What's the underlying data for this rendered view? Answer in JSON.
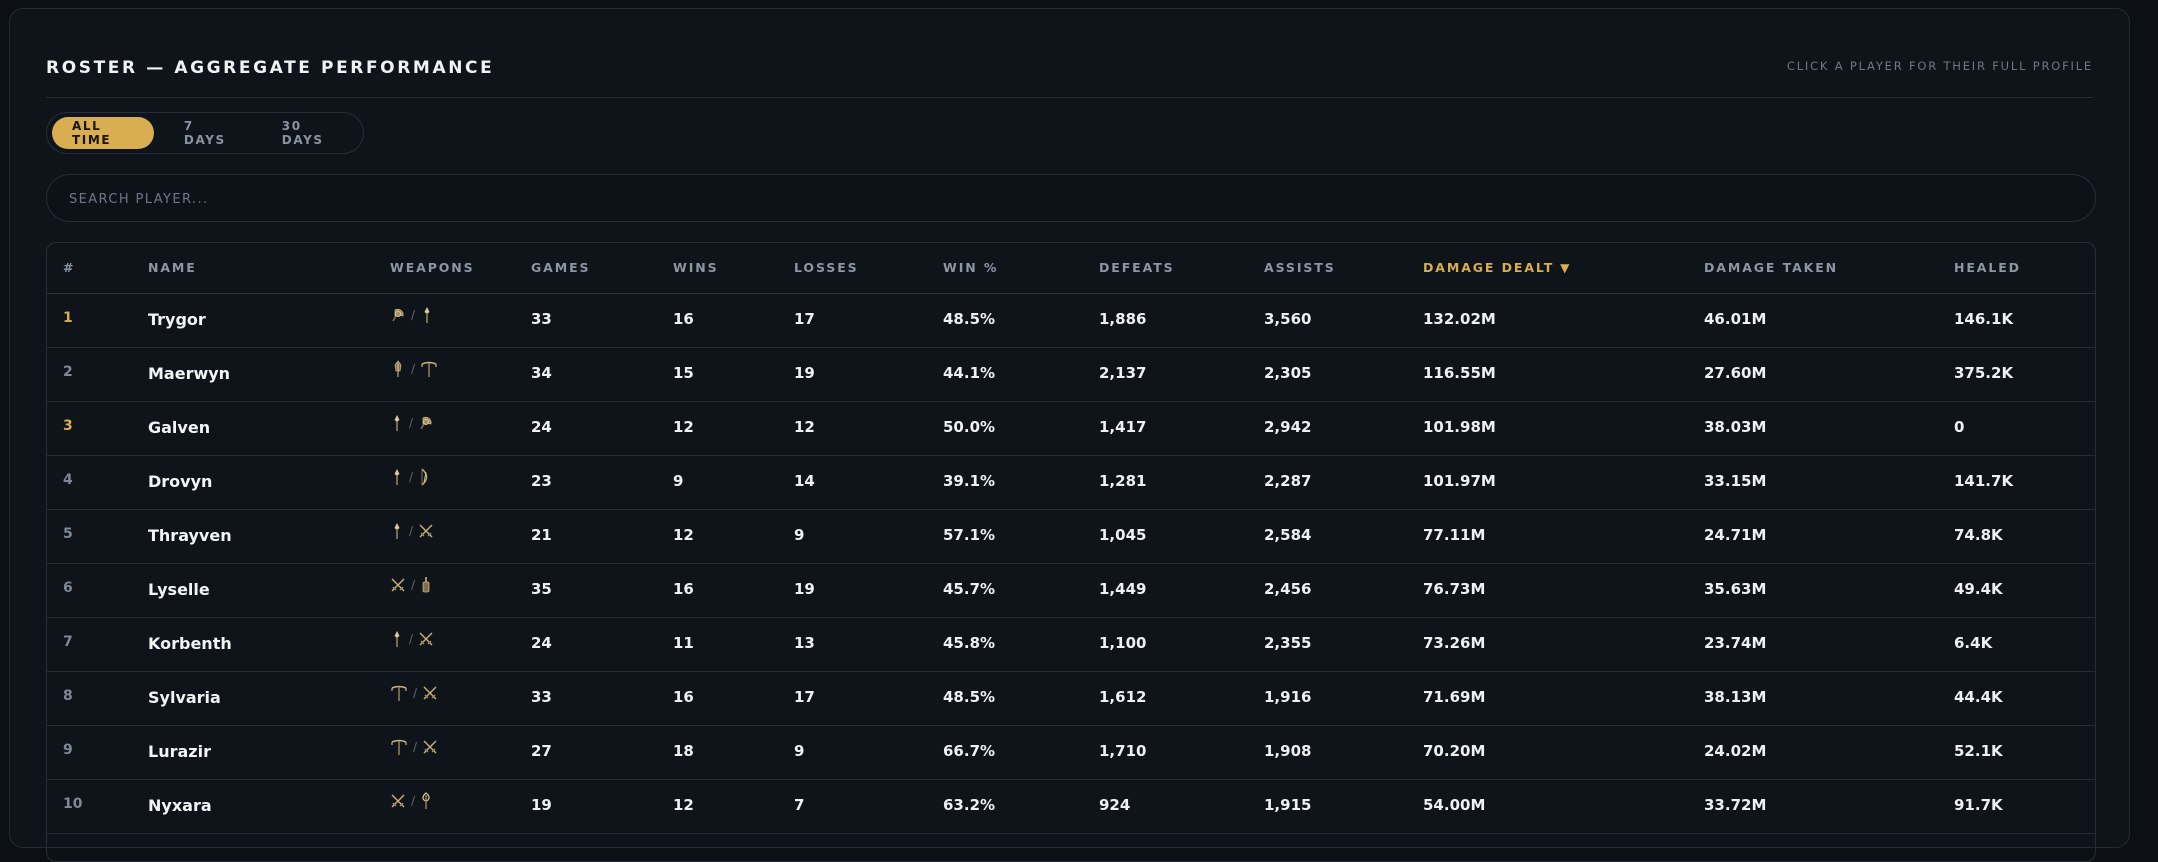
{
  "header": {
    "title": "ROSTER — AGGREGATE PERFORMANCE",
    "hint": "CLICK A PLAYER FOR THEIR FULL PROFILE"
  },
  "filters": {
    "options": [
      "ALL TIME",
      "7 DAYS",
      "30 DAYS"
    ],
    "selected": "ALL TIME"
  },
  "search": {
    "placeholder": "SEARCH PLAYER...",
    "value": ""
  },
  "table": {
    "columns": {
      "rank": "#",
      "name": "NAME",
      "weapons": "WEAPONS",
      "games": "GAMES",
      "wins": "WINS",
      "losses": "LOSSES",
      "win_pct": "WIN %",
      "defeats": "DEFEATS",
      "assists": "ASSISTS",
      "damage_dealt": "DAMAGE DEALT",
      "damage_taken": "DAMAGE TAKEN",
      "healed": "HEALED"
    },
    "sort": {
      "column": "damage_dealt",
      "direction": "desc",
      "indicator": "▼"
    },
    "rows": [
      {
        "rank": "1",
        "name": "Trygor",
        "weapons": [
          "hatchet-icon",
          "spear-icon"
        ],
        "games": "33",
        "wins": "16",
        "losses": "17",
        "win_pct": "48.5%",
        "defeats": "1,886",
        "assists": "3,560",
        "damage_dealt": "132.02M",
        "damage_taken": "46.01M",
        "healed": "146.1K"
      },
      {
        "rank": "2",
        "name": "Maerwyn",
        "weapons": [
          "blunderbuss-icon",
          "great-axe-icon"
        ],
        "games": "34",
        "wins": "15",
        "losses": "19",
        "win_pct": "44.1%",
        "defeats": "2,137",
        "assists": "2,305",
        "damage_dealt": "116.55M",
        "damage_taken": "27.60M",
        "healed": "375.2K"
      },
      {
        "rank": "3",
        "name": "Galven",
        "weapons": [
          "spear-icon",
          "hatchet-icon"
        ],
        "games": "24",
        "wins": "12",
        "losses": "12",
        "win_pct": "50.0%",
        "defeats": "1,417",
        "assists": "2,942",
        "damage_dealt": "101.98M",
        "damage_taken": "38.03M",
        "healed": "0"
      },
      {
        "rank": "4",
        "name": "Drovyn",
        "weapons": [
          "spear-icon",
          "bow-icon"
        ],
        "games": "23",
        "wins": "9",
        "losses": "14",
        "win_pct": "39.1%",
        "defeats": "1,281",
        "assists": "2,287",
        "damage_dealt": "101.97M",
        "damage_taken": "33.15M",
        "healed": "141.7K"
      },
      {
        "rank": "5",
        "name": "Thrayven",
        "weapons": [
          "spear-icon",
          "crossed-swords-icon"
        ],
        "games": "21",
        "wins": "12",
        "losses": "9",
        "win_pct": "57.1%",
        "defeats": "1,045",
        "assists": "2,584",
        "damage_dealt": "77.11M",
        "damage_taken": "24.71M",
        "healed": "74.8K"
      },
      {
        "rank": "6",
        "name": "Lyselle",
        "weapons": [
          "crossed-swords-icon",
          "gauntlet-icon"
        ],
        "games": "35",
        "wins": "16",
        "losses": "19",
        "win_pct": "45.7%",
        "defeats": "1,449",
        "assists": "2,456",
        "damage_dealt": "76.73M",
        "damage_taken": "35.63M",
        "healed": "49.4K"
      },
      {
        "rank": "7",
        "name": "Korbenth",
        "weapons": [
          "spear-icon",
          "crossed-swords-icon"
        ],
        "games": "24",
        "wins": "11",
        "losses": "13",
        "win_pct": "45.8%",
        "defeats": "1,100",
        "assists": "2,355",
        "damage_dealt": "73.26M",
        "damage_taken": "23.74M",
        "healed": "6.4K"
      },
      {
        "rank": "8",
        "name": "Sylvaria",
        "weapons": [
          "great-axe-icon",
          "crossed-swords-icon"
        ],
        "games": "33",
        "wins": "16",
        "losses": "17",
        "win_pct": "48.5%",
        "defeats": "1,612",
        "assists": "1,916",
        "damage_dealt": "71.69M",
        "damage_taken": "38.13M",
        "healed": "44.4K"
      },
      {
        "rank": "9",
        "name": "Lurazir",
        "weapons": [
          "great-axe-icon",
          "crossed-swords-icon"
        ],
        "games": "27",
        "wins": "18",
        "losses": "9",
        "win_pct": "66.7%",
        "defeats": "1,710",
        "assists": "1,908",
        "damage_dealt": "70.20M",
        "damage_taken": "24.02M",
        "healed": "52.1K"
      },
      {
        "rank": "10",
        "name": "Nyxara",
        "weapons": [
          "crossed-swords-icon",
          "staff-icon"
        ],
        "games": "19",
        "wins": "12",
        "losses": "7",
        "win_pct": "63.2%",
        "defeats": "924",
        "assists": "1,915",
        "damage_dealt": "54.00M",
        "damage_taken": "33.72M",
        "healed": "91.7K"
      }
    ]
  },
  "colors": {
    "background": "#0c1015",
    "panel": "#0f141b",
    "accent_gold": "#d9ad52",
    "border": "#262e39",
    "muted_text": "#8d96a3"
  }
}
